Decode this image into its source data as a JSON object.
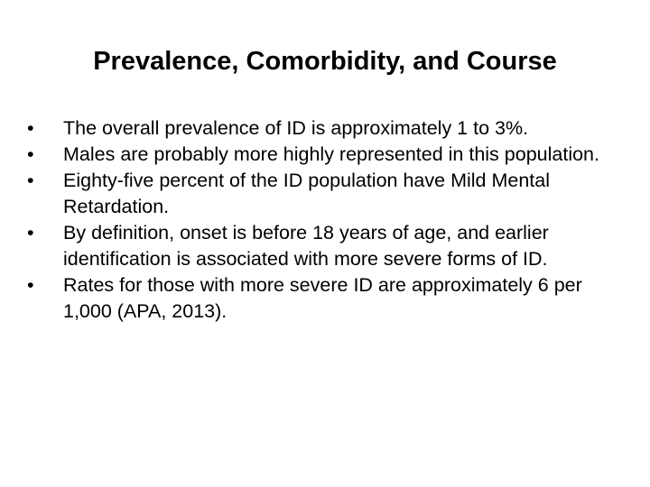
{
  "slide": {
    "title": "Prevalence, Comorbidity, and Course",
    "bullets": [
      "The overall prevalence of ID is approximately 1 to 3%.",
      "Males are probably more highly represented in this population.",
      "Eighty-five percent of the ID population have Mild Mental Retardation.",
      "By definition, onset is before 18 years of age, and earlier identification is associated with more severe forms of ID.",
      "Rates for those with more severe ID are approximately 6 per 1,000 (APA, 2013)."
    ]
  }
}
